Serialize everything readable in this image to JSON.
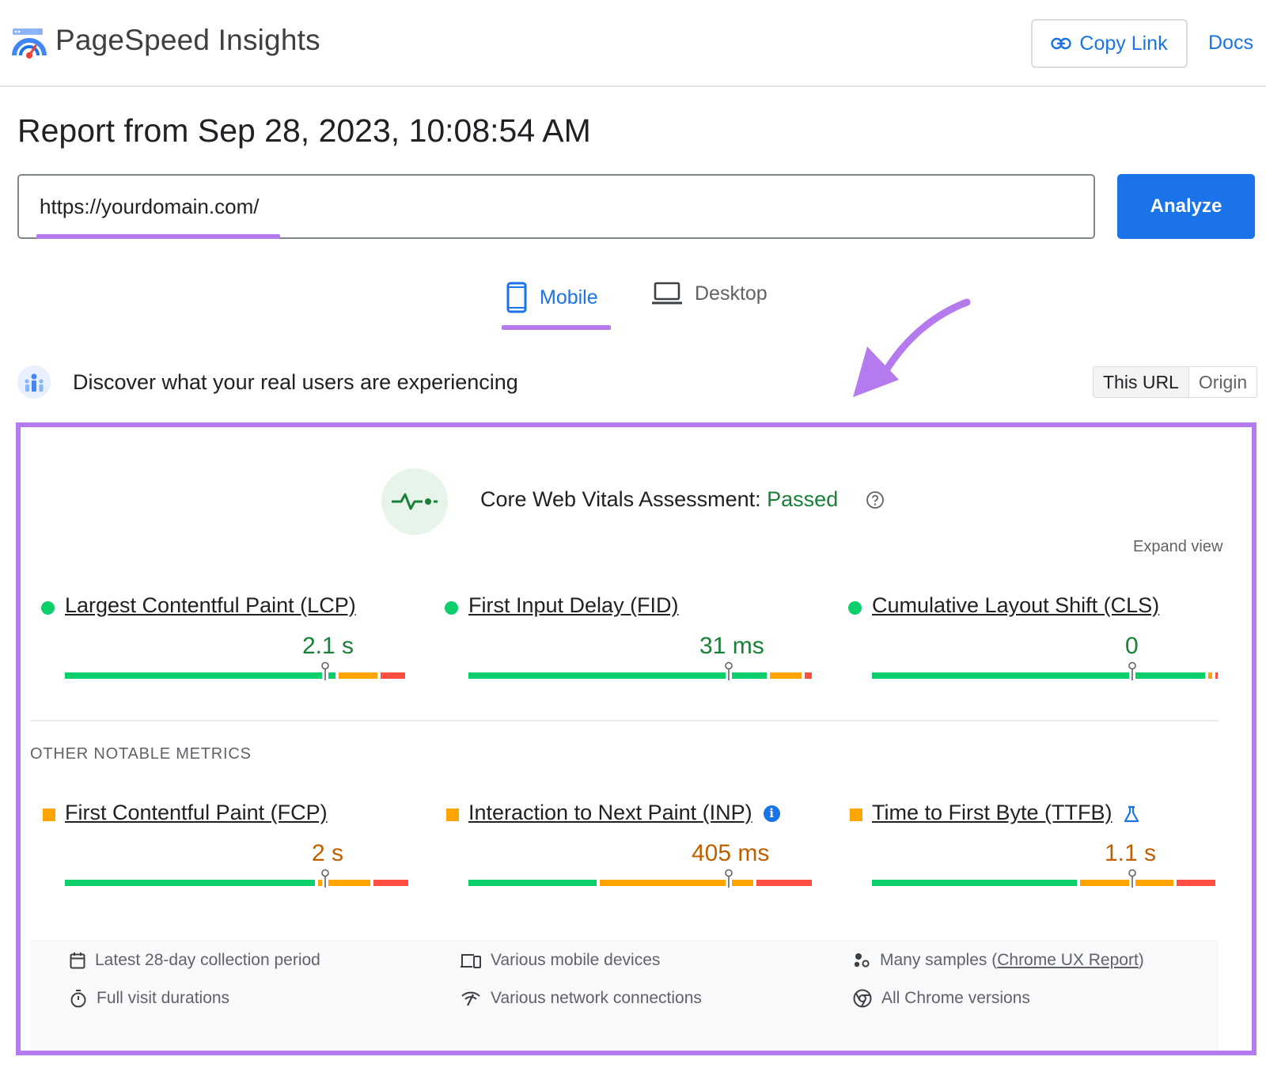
{
  "header": {
    "app_title": "PageSpeed Insights",
    "copy_link_label": "Copy Link",
    "docs_label": "Docs"
  },
  "report": {
    "title": "Report from Sep 28, 2023, 10:08:54 AM",
    "url_value": "https://yourdomain.com/",
    "analyze_label": "Analyze"
  },
  "tabs": [
    {
      "label": "Mobile",
      "selected": true
    },
    {
      "label": "Desktop",
      "selected": false
    }
  ],
  "discover": {
    "text": "Discover what your real users are experiencing",
    "toggle": [
      "This URL",
      "Origin"
    ],
    "toggle_selected": "This URL"
  },
  "assessment": {
    "prefix": "Core Web Vitals Assessment: ",
    "status": "Passed",
    "expand_label": "Expand view"
  },
  "core_metrics": [
    {
      "label": "Largest Contentful Paint (LCP)",
      "value": "2.1 s",
      "rating": "good",
      "marker_fraction": 0.75,
      "distribution": [
        0.79,
        0.12,
        0.08
      ]
    },
    {
      "label": "First Input Delay (FID)",
      "value": "31 ms",
      "rating": "good",
      "marker_fraction": 0.75,
      "distribution": [
        0.87,
        0.1,
        0.03
      ]
    },
    {
      "label": "Cumulative Layout Shift (CLS)",
      "value": "0",
      "rating": "good",
      "marker_fraction": 0.75,
      "distribution": [
        0.97,
        0.02,
        0.01
      ]
    }
  ],
  "other_title": "OTHER NOTABLE METRICS",
  "other_metrics": [
    {
      "label": "First Contentful Paint (FCP)",
      "value": "2 s",
      "rating": "needs-improvement",
      "marker_fraction": 0.75,
      "distribution": [
        0.73,
        0.16,
        0.11
      ]
    },
    {
      "label": "Interaction to Next Paint (INP)",
      "value": "405 ms",
      "rating": "needs-improvement",
      "marker_fraction": 0.75,
      "distribution": [
        0.38,
        0.45,
        0.17
      ],
      "badge": "info-icon"
    },
    {
      "label": "Time to First Byte (TTFB)",
      "value": "1.1 s",
      "rating": "needs-improvement",
      "marker_fraction": 0.75,
      "distribution": [
        0.6,
        0.28,
        0.12
      ],
      "badge": "flask-icon"
    }
  ],
  "footer": {
    "collection_period": "Latest 28-day collection period",
    "devices": "Various mobile devices",
    "samples_prefix": "Many samples (",
    "samples_link": "Chrome UX Report",
    "samples_suffix": ")",
    "durations": "Full visit durations",
    "network": "Various network connections",
    "versions": "All Chrome versions"
  },
  "colors": {
    "accent_blue": "#1a73e8",
    "highlight_purple": "#b57bee",
    "good": "#0cce6b",
    "average": "#ffa400",
    "poor": "#ff4e42",
    "passed_text": "#188038",
    "average_text": "#c05f00"
  }
}
